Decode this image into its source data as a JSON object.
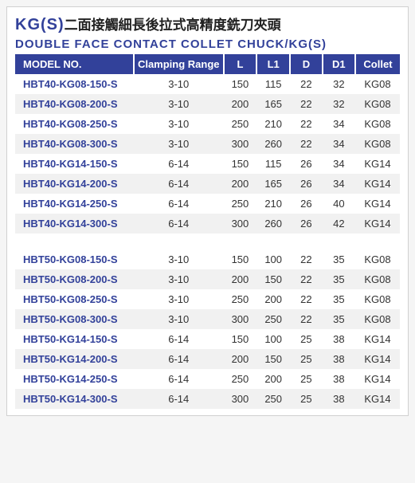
{
  "title": {
    "kg": "KG(S)",
    "chinese": "二面接觸細長後拉式高精度銑刀夾頭",
    "english": "DOUBLE FACE CONTACT COLLET CHUCK/KG(S)"
  },
  "headers": {
    "model": "MODEL NO.",
    "range": "Clamping Range",
    "l": "L",
    "l1": "L1",
    "d": "D",
    "d1": "D1",
    "collet": "Collet"
  },
  "rows": [
    {
      "model": "HBT40-KG08-150-S",
      "range": "3-10",
      "l": "150",
      "l1": "115",
      "d": "22",
      "d1": "32",
      "collet": "KG08"
    },
    {
      "model": "HBT40-KG08-200-S",
      "range": "3-10",
      "l": "200",
      "l1": "165",
      "d": "22",
      "d1": "32",
      "collet": "KG08"
    },
    {
      "model": "HBT40-KG08-250-S",
      "range": "3-10",
      "l": "250",
      "l1": "210",
      "d": "22",
      "d1": "34",
      "collet": "KG08"
    },
    {
      "model": "HBT40-KG08-300-S",
      "range": "3-10",
      "l": "300",
      "l1": "260",
      "d": "22",
      "d1": "34",
      "collet": "KG08"
    },
    {
      "model": "HBT40-KG14-150-S",
      "range": "6-14",
      "l": "150",
      "l1": "115",
      "d": "26",
      "d1": "34",
      "collet": "KG14"
    },
    {
      "model": "HBT40-KG14-200-S",
      "range": "6-14",
      "l": "200",
      "l1": "165",
      "d": "26",
      "d1": "34",
      "collet": "KG14"
    },
    {
      "model": "HBT40-KG14-250-S",
      "range": "6-14",
      "l": "250",
      "l1": "210",
      "d": "26",
      "d1": "40",
      "collet": "KG14"
    },
    {
      "model": "HBT40-KG14-300-S",
      "range": "6-14",
      "l": "300",
      "l1": "260",
      "d": "26",
      "d1": "42",
      "collet": "KG14"
    },
    {
      "gap": true
    },
    {
      "model": "HBT50-KG08-150-S",
      "range": "3-10",
      "l": "150",
      "l1": "100",
      "d": "22",
      "d1": "35",
      "collet": "KG08"
    },
    {
      "model": "HBT50-KG08-200-S",
      "range": "3-10",
      "l": "200",
      "l1": "150",
      "d": "22",
      "d1": "35",
      "collet": "KG08"
    },
    {
      "model": "HBT50-KG08-250-S",
      "range": "3-10",
      "l": "250",
      "l1": "200",
      "d": "22",
      "d1": "35",
      "collet": "KG08"
    },
    {
      "model": "HBT50-KG08-300-S",
      "range": "3-10",
      "l": "300",
      "l1": "250",
      "d": "22",
      "d1": "35",
      "collet": "KG08"
    },
    {
      "model": "HBT50-KG14-150-S",
      "range": "6-14",
      "l": "150",
      "l1": "100",
      "d": "25",
      "d1": "38",
      "collet": "KG14"
    },
    {
      "model": "HBT50-KG14-200-S",
      "range": "6-14",
      "l": "200",
      "l1": "150",
      "d": "25",
      "d1": "38",
      "collet": "KG14"
    },
    {
      "model": "HBT50-KG14-250-S",
      "range": "6-14",
      "l": "250",
      "l1": "200",
      "d": "25",
      "d1": "38",
      "collet": "KG14"
    },
    {
      "model": "HBT50-KG14-300-S",
      "range": "6-14",
      "l": "300",
      "l1": "250",
      "d": "25",
      "d1": "38",
      "collet": "KG14"
    }
  ],
  "colors": {
    "primary": "#32419a",
    "text": "#333",
    "alt_row": "#f1f1f1",
    "border": "#d0d0d0"
  }
}
